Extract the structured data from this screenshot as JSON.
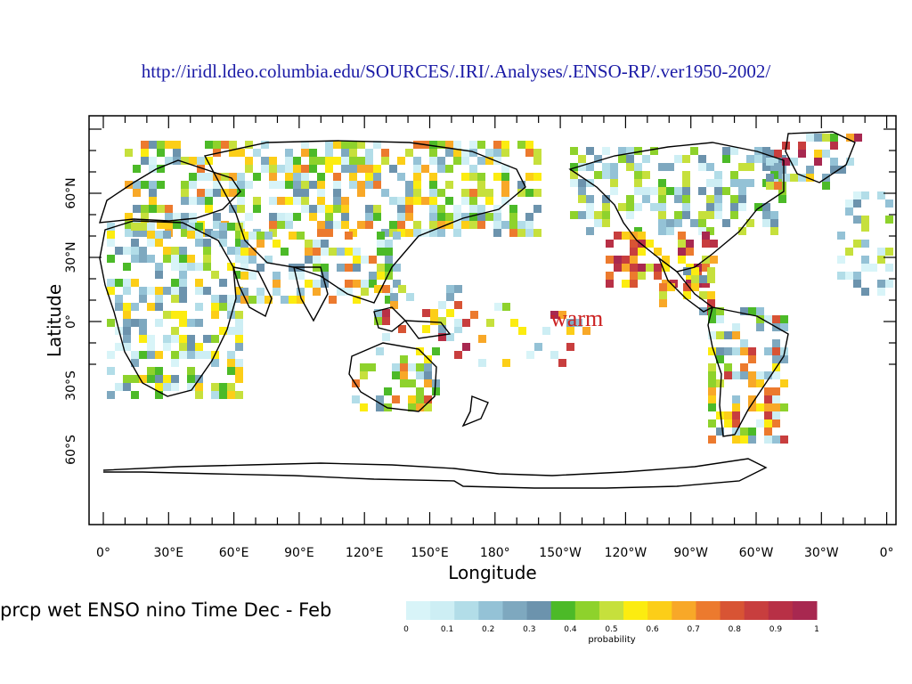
{
  "source_url": "http://iridl.ldeo.columbia.edu/SOURCES/.IRI/.Analyses/.ENSO-RP/.ver1950-2002/",
  "map": {
    "xlabel": "Longitude",
    "ylabel": "Latitude",
    "lon_ticks": [
      "0°",
      "30°E",
      "60°E",
      "90°E",
      "120°E",
      "150°E",
      "180°",
      "150°W",
      "120°W",
      "90°W",
      "60°W",
      "30°W",
      "0°"
    ],
    "lat_ticks": [
      "60°N",
      "30°N",
      "0°",
      "30°S",
      "60°S"
    ],
    "annotation": "warm",
    "annotation_color": "#cc2222"
  },
  "plot_title": "prcp wet ENSO nino Time Dec  - Feb",
  "colorbar": {
    "label": "probability",
    "ticks": [
      "0",
      "0.1",
      "0.2",
      "0.3",
      "0.4",
      "0.5",
      "0.6",
      "0.7",
      "0.8",
      "0.9",
      "1"
    ],
    "colors": [
      "#d8f4f8",
      "#cdeef4",
      "#b2dde8",
      "#94c2d6",
      "#7ea8bf",
      "#6c93ad",
      "#4cba28",
      "#8ed22c",
      "#c6e03c",
      "#fcec10",
      "#fcce18",
      "#f8a828",
      "#ec7a2e",
      "#d85434",
      "#c83e3e",
      "#b83046",
      "#a82850"
    ]
  }
}
